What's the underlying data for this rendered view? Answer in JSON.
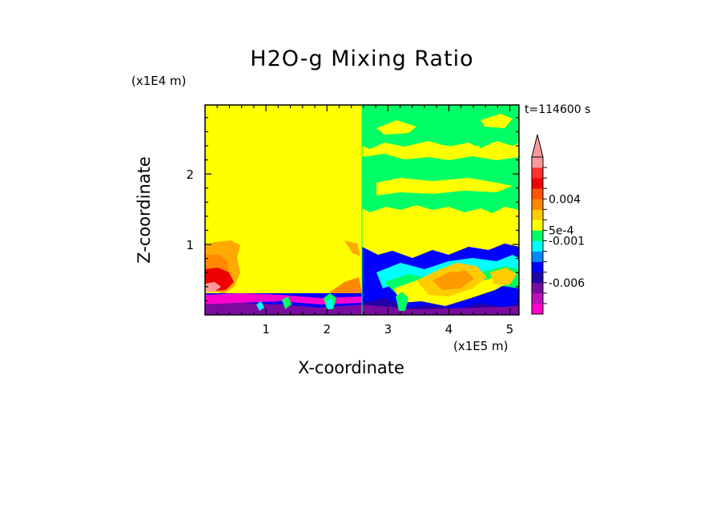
{
  "chart_data": {
    "type": "heatmap",
    "title": "H2O-g Mixing Ratio",
    "xlabel": "X-coordinate",
    "ylabel": "Z-coordinate",
    "x_multiplier": "(x1E5 m)",
    "y_multiplier": "(x1E4 m)",
    "timestamp": "t=114600 s",
    "xlim": [
      0,
      5.15
    ],
    "ylim": [
      0,
      2.98
    ],
    "xticks": [
      {
        "value": 1,
        "label": "1"
      },
      {
        "value": 2,
        "label": "2"
      },
      {
        "value": 3,
        "label": "3"
      },
      {
        "value": 4,
        "label": "4"
      },
      {
        "value": 5,
        "label": "5"
      }
    ],
    "yticks": [
      {
        "value": 1,
        "label": "1"
      },
      {
        "value": 2,
        "label": "2"
      }
    ],
    "colorbar": {
      "colors": [
        "#ff00cc",
        "#bb11bb",
        "#7a0aa0",
        "#2200aa",
        "#0000ff",
        "#0088ff",
        "#00ffff",
        "#00ff66",
        "#ffff00",
        "#ffcc00",
        "#ff8800",
        "#ff5500",
        "#ee0000",
        "#ff3030",
        "#ff9999"
      ],
      "labels": [
        {
          "level": 3,
          "text": "-0.006"
        },
        {
          "level": 7,
          "text": "-0.001"
        },
        {
          "level": 8,
          "text": "5e-4"
        },
        {
          "level": 11,
          "text": "0.004"
        }
      ],
      "extend_top": "#ff9999"
    },
    "regions": [
      {
        "name": "upper-field",
        "color": "#ffff00",
        "x": [
          0,
          5.15
        ],
        "y": [
          0,
          2.98
        ]
      },
      {
        "name": "green-cloud-top",
        "color": "#00ff66",
        "x": [
          2.55,
          5.15
        ],
        "y": [
          1.45,
          2.98
        ]
      },
      {
        "name": "green-band-middle",
        "color": "#00ff66",
        "x": [
          2.55,
          5.15
        ],
        "y": [
          1.5,
          1.8
        ]
      },
      {
        "name": "blue-lower-right",
        "color": "#0000ff",
        "x": [
          2.55,
          5.15
        ],
        "y": [
          0,
          0.95
        ]
      },
      {
        "name": "orange-plume",
        "color": "#ffcc00",
        "x": [
          3.5,
          4.6
        ],
        "y": [
          0.3,
          0.75
        ]
      },
      {
        "name": "red-left-lens",
        "color": "#ff0000",
        "x": [
          0,
          0.4
        ],
        "y": [
          0.35,
          0.7
        ]
      },
      {
        "name": "magenta-ground",
        "color": "#ff00cc",
        "x": [
          0,
          5.15
        ],
        "y": [
          0,
          0.2
        ]
      }
    ]
  }
}
